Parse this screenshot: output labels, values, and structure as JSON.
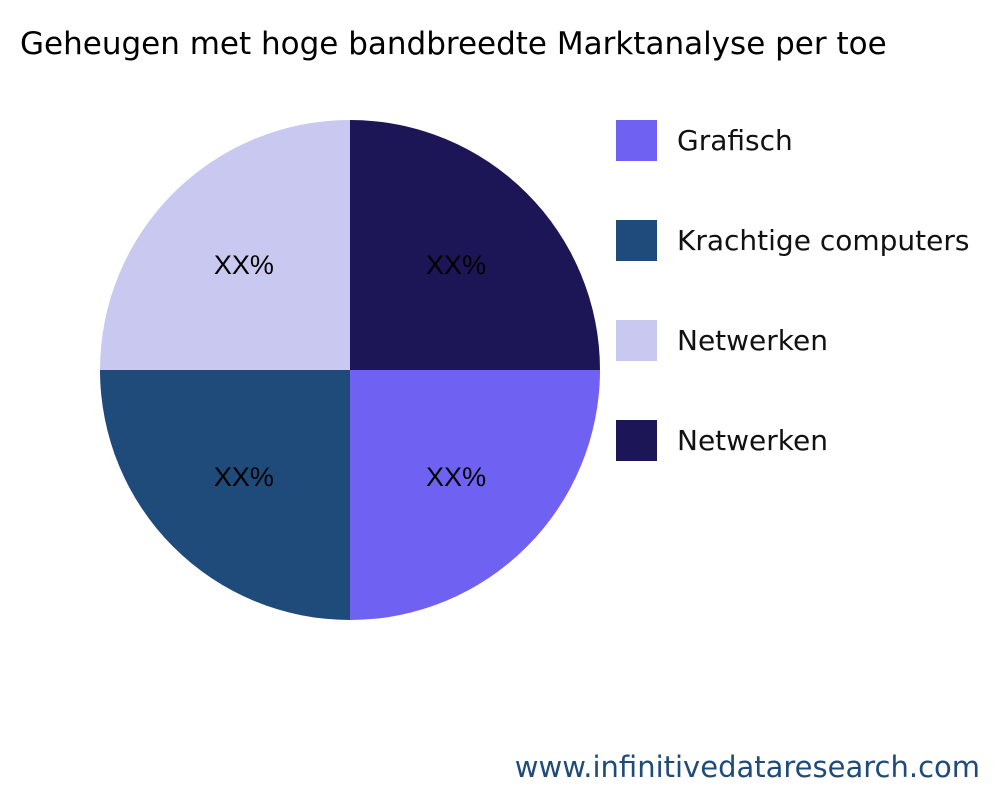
{
  "chart_data": {
    "type": "pie",
    "title": "Geheugen met hoge bandbreedte Marktanalyse per toe",
    "slices": [
      {
        "name": "Netwerken",
        "value": 25,
        "label": "XX%",
        "color": "#1c1656"
      },
      {
        "name": "Grafisch",
        "value": 25,
        "label": "XX%",
        "color": "#6f61f2"
      },
      {
        "name": "Krachtige computers",
        "value": 25,
        "label": "XX%",
        "color": "#1f4b7a"
      },
      {
        "name": "Netwerken",
        "value": 25,
        "label": "XX%",
        "color": "#c8c8f0"
      }
    ],
    "legend": {
      "placement": "right",
      "entries": [
        {
          "label": "Grafisch",
          "color": "#6f61f2"
        },
        {
          "label": "Krachtige computers",
          "color": "#1f4b7a"
        },
        {
          "label": "Netwerken",
          "color": "#c8c8f0"
        },
        {
          "label": "Netwerken",
          "color": "#1c1656"
        }
      ]
    }
  },
  "watermark": "www.infinitivedataresearch.com"
}
